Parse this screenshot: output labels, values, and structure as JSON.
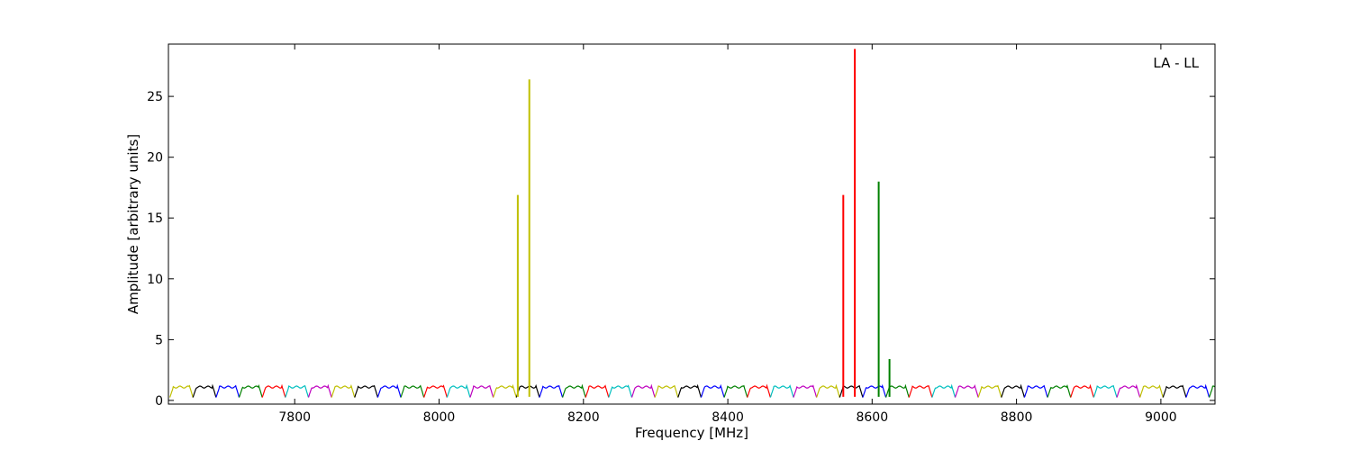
{
  "chart_data": {
    "type": "line",
    "title": "",
    "annotation": "LA - LL",
    "xlabel": "Frequency [MHz]",
    "ylabel": "Amplitude [arbitrary units]",
    "xlim": [
      7625,
      9075
    ],
    "ylim": [
      -0.3,
      29.3
    ],
    "xticks": [
      7800,
      8000,
      8200,
      8400,
      8600,
      8800,
      9000
    ],
    "yticks": [
      0,
      5,
      10,
      15,
      20,
      25
    ],
    "grid": false,
    "legend": "none",
    "channel_width_mhz": 32,
    "channel_start_mhz": 7627,
    "channel_colors": [
      "#bfbf00",
      "#000000",
      "#0000ff",
      "#008000",
      "#ff0000",
      "#00bfbf",
      "#bf00bf"
    ],
    "spikes": [
      {
        "x": 8109,
        "y": 16.9,
        "color": "#bfbf00"
      },
      {
        "x": 8125,
        "y": 26.4,
        "color": "#bfbf00"
      },
      {
        "x": 8560,
        "y": 16.9,
        "color": "#ff0000"
      },
      {
        "x": 8576,
        "y": 28.9,
        "color": "#ff0000"
      },
      {
        "x": 8609,
        "y": 18.0,
        "color": "#008000"
      },
      {
        "x": 8624,
        "y": 3.4,
        "color": "#008000"
      }
    ]
  }
}
